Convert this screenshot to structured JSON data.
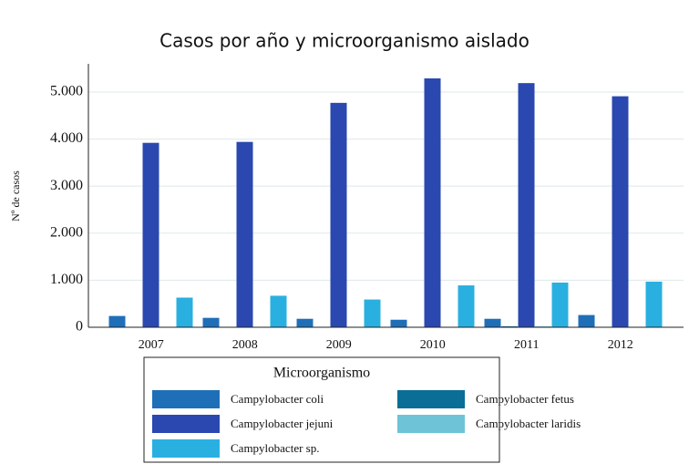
{
  "chart_data": {
    "type": "bar",
    "title": "Casos por año y microorganismo aislado",
    "y_label": "Nº de casos",
    "legend_title": "Microorganismo",
    "categories": [
      "2007",
      "2008",
      "2009",
      "2010",
      "2011",
      "2012"
    ],
    "series": [
      {
        "name": "Campylobacter coli",
        "color": "#1f6fb8",
        "values": [
          240,
          200,
          180,
          160,
          180,
          260
        ]
      },
      {
        "name": "Campylobacter fetus",
        "color": "#0a6e96",
        "values": [
          10,
          10,
          10,
          10,
          20,
          10
        ]
      },
      {
        "name": "Campylobacter jejuni",
        "color": "#2a48b0",
        "values": [
          3920,
          3940,
          4770,
          5290,
          5190,
          4910
        ]
      },
      {
        "name": "Campylobacter laridis",
        "color": "#6ec4d6",
        "values": [
          10,
          10,
          10,
          10,
          20,
          10
        ]
      },
      {
        "name": "Campylobacter sp.",
        "color": "#2ab0e0",
        "values": [
          630,
          670,
          590,
          890,
          950,
          970
        ]
      }
    ],
    "ylim": [
      0,
      5600
    ],
    "yticks": [
      0,
      {
        "value": 1000,
        "label": "1.000"
      },
      {
        "value": 2000,
        "label": "2.000"
      },
      {
        "value": 3000,
        "label": "3.000"
      },
      {
        "value": 4000,
        "label": "4.000"
      },
      {
        "value": 5000,
        "label": "5.000"
      }
    ],
    "grid": true
  }
}
